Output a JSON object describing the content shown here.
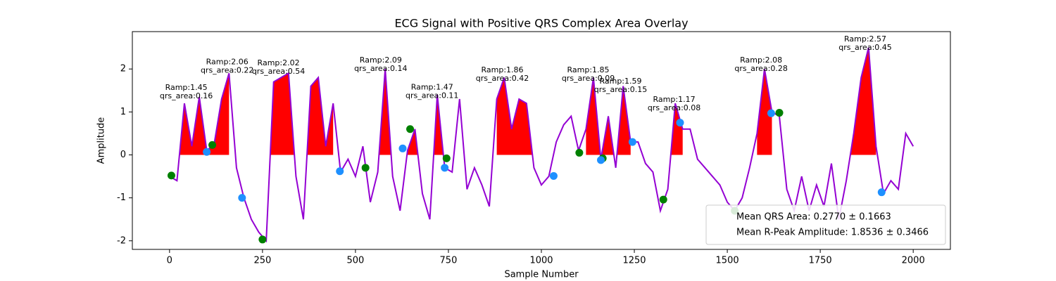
{
  "chart_data": {
    "type": "line",
    "title": "ECG Signal with Positive QRS Complex Area Overlay",
    "xlabel": "Sample Number",
    "ylabel": "Amplitude",
    "xlim": [
      -100,
      2100
    ],
    "ylim": [
      -2.2,
      2.87
    ],
    "xticks": [
      0,
      250,
      500,
      750,
      1000,
      1250,
      1500,
      1750,
      2000
    ],
    "yticks": [
      -2,
      -1,
      0,
      1,
      2
    ],
    "color": "#9400d3",
    "x": [
      0,
      20,
      40,
      60,
      80,
      100,
      120,
      140,
      160,
      180,
      200,
      220,
      240,
      260,
      280,
      300,
      320,
      340,
      360,
      380,
      400,
      420,
      440,
      460,
      480,
      500,
      520,
      540,
      560,
      580,
      600,
      620,
      640,
      660,
      680,
      700,
      720,
      740,
      760,
      780,
      800,
      820,
      840,
      860,
      880,
      900,
      920,
      940,
      960,
      980,
      1000,
      1020,
      1040,
      1060,
      1080,
      1100,
      1120,
      1140,
      1160,
      1180,
      1200,
      1220,
      1240,
      1260,
      1280,
      1300,
      1320,
      1340,
      1360,
      1380,
      1400,
      1420,
      1440,
      1460,
      1480,
      1500,
      1520,
      1540,
      1560,
      1580,
      1600,
      1620,
      1640,
      1660,
      1680,
      1700,
      1720,
      1740,
      1760,
      1780,
      1800,
      1820,
      1840,
      1860,
      1880,
      1900,
      1920,
      1940,
      1960,
      1980,
      2000
    ],
    "values": [
      -0.5,
      -0.6,
      1.2,
      0.2,
      1.35,
      0.1,
      0.25,
      1.3,
      1.9,
      -0.3,
      -1.0,
      -1.5,
      -1.8,
      -2.0,
      1.7,
      1.8,
      1.9,
      -0.5,
      -1.5,
      1.6,
      1.8,
      0.2,
      1.2,
      -0.4,
      -0.1,
      -0.5,
      0.2,
      -1.1,
      -0.4,
      2.0,
      -0.5,
      -1.3,
      0.1,
      0.6,
      -0.9,
      -1.5,
      1.4,
      -0.3,
      -0.4,
      1.3,
      -0.8,
      -0.3,
      -0.7,
      -1.2,
      1.3,
      1.8,
      0.6,
      1.3,
      1.2,
      -0.3,
      -0.7,
      -0.5,
      0.3,
      0.7,
      0.9,
      0.1,
      0.6,
      1.8,
      -0.1,
      0.9,
      -0.3,
      1.6,
      0.3,
      0.3,
      -0.2,
      -0.4,
      -1.3,
      -0.8,
      1.2,
      0.6,
      0.6,
      -0.1,
      -0.3,
      -0.5,
      -0.7,
      -1.1,
      -1.3,
      -1.0,
      -0.3,
      0.5,
      2.0,
      1.0,
      0.9,
      -0.8,
      -1.3,
      -0.5,
      -1.3,
      -0.7,
      -1.2,
      -0.2,
      -1.5,
      -0.6,
      0.5,
      1.8,
      2.5,
      0.2,
      -0.9,
      -0.6,
      -0.8,
      0.5,
      0.2
    ],
    "qrs_fill": {
      "color": "#ff0000",
      "windows": [
        [
          20,
          170
        ],
        [
          260,
          440
        ],
        [
          560,
          600
        ],
        [
          640,
          760
        ],
        [
          880,
          980
        ],
        [
          1120,
          1240
        ],
        [
          1340,
          1380
        ],
        [
          1580,
          1620
        ],
        [
          1820,
          1900
        ]
      ]
    },
    "markers": [
      {
        "color": "#008000",
        "x": [
          5,
          115,
          250,
          527,
          647,
          745,
          1102,
          1165,
          1328,
          1520,
          1640
        ],
        "y": [
          -0.48,
          0.23,
          -1.97,
          -0.3,
          0.6,
          -0.08,
          0.05,
          -0.08,
          -1.04,
          -1.3,
          0.98
        ]
      },
      {
        "color": "#1e90ff",
        "x": [
          100,
          195,
          458,
          627,
          740,
          1033,
          1160,
          1245,
          1373,
          1618,
          1915
        ],
        "y": [
          0.07,
          -1.0,
          -0.38,
          0.15,
          -0.3,
          -0.49,
          -0.12,
          0.3,
          0.75,
          0.97,
          -0.87
        ]
      }
    ],
    "annotations": [
      {
        "x": 45,
        "y": 1.56,
        "lines": [
          "Ramp:1.45",
          "qrs_area:0.16"
        ]
      },
      {
        "x": 155,
        "y": 2.16,
        "lines": [
          "Ramp:2.06",
          "qrs_area:0.22"
        ]
      },
      {
        "x": 293,
        "y": 2.13,
        "lines": [
          "Ramp:2.02",
          "qrs_area:0.54"
        ]
      },
      {
        "x": 568,
        "y": 2.2,
        "lines": [
          "Ramp:2.09",
          "qrs_area:0.14"
        ]
      },
      {
        "x": 706,
        "y": 1.57,
        "lines": [
          "Ramp:1.47",
          "qrs_area:0.11"
        ]
      },
      {
        "x": 895,
        "y": 1.97,
        "lines": [
          "Ramp:1.86",
          "qrs_area:0.42"
        ]
      },
      {
        "x": 1126,
        "y": 1.97,
        "lines": [
          "Ramp:1.85",
          "qrs_area:0.09"
        ]
      },
      {
        "x": 1213,
        "y": 1.71,
        "lines": [
          "Ramp:1.59",
          "qrs_area:0.15"
        ]
      },
      {
        "x": 1357,
        "y": 1.28,
        "lines": [
          "Ramp:1.17",
          "qrs_area:0.08"
        ]
      },
      {
        "x": 1591,
        "y": 2.2,
        "lines": [
          "Ramp:2.08",
          "qrs_area:0.28"
        ]
      },
      {
        "x": 1871,
        "y": 2.69,
        "lines": [
          "Ramp:2.57",
          "qrs_area:0.45"
        ]
      }
    ],
    "legend": {
      "loc": "lower right",
      "labels": [
        "Mean QRS Area: 0.2770 ± 0.1663",
        "Mean R-Peak Amplitude: 1.8536 ± 0.3466"
      ]
    }
  }
}
